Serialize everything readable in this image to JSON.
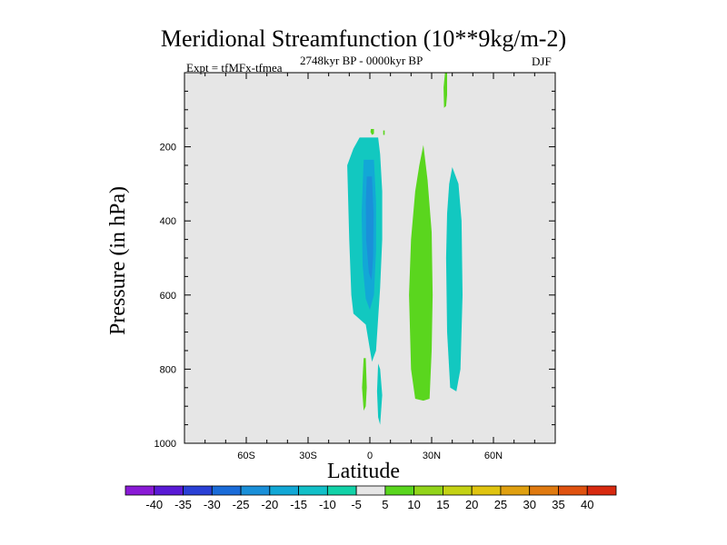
{
  "chart_data": {
    "type": "contour",
    "title": "Meridional Streamfunction (10**9kg/m-2)",
    "subtitle_left": "Expt = tfMFx-tfmea",
    "subtitle_center": "2748kyr BP - 0000kyr BP",
    "subtitle_right": "DJF",
    "xlabel": "Latitude",
    "ylabel": "Pressure (in hPa)",
    "x_range": [
      -90,
      90
    ],
    "y_range": [
      0,
      1000
    ],
    "y_inverted": true,
    "x_ticks": [
      {
        "value": -60,
        "label": "60S"
      },
      {
        "value": -30,
        "label": "30S"
      },
      {
        "value": 0,
        "label": "0"
      },
      {
        "value": 30,
        "label": "30N"
      },
      {
        "value": 60,
        "label": "60N"
      }
    ],
    "y_ticks": [
      {
        "value": 200,
        "label": "200"
      },
      {
        "value": 400,
        "label": "400"
      },
      {
        "value": 600,
        "label": "600"
      },
      {
        "value": 800,
        "label": "800"
      },
      {
        "value": 1000,
        "label": "1000"
      }
    ],
    "background_color": "#e6e6e6",
    "colorbar": {
      "levels": [
        -40,
        -35,
        -30,
        -25,
        -20,
        -15,
        -10,
        -5,
        5,
        10,
        15,
        20,
        25,
        30,
        35,
        40
      ],
      "colors": [
        "#8a1ad6",
        "#5a1ad6",
        "#2a40d6",
        "#1a6cd9",
        "#1a90d9",
        "#12a8d6",
        "#12c0c8",
        "#12d2a8",
        "#e6e6e6",
        "#5ad61e",
        "#92d41a",
        "#c4d214",
        "#e0c410",
        "#e0a010",
        "#e07a10",
        "#e05210",
        "#d82a10"
      ]
    },
    "regions": [
      {
        "name": "tropical-cell-outer",
        "level": "-10 to -5",
        "color": "#12c8c0",
        "polygon": [
          [
            -5,
            175
          ],
          [
            4,
            175
          ],
          [
            5,
            220
          ],
          [
            6,
            320
          ],
          [
            6,
            450
          ],
          [
            5,
            580
          ],
          [
            3,
            750
          ],
          [
            1,
            780
          ],
          [
            -2,
            680
          ],
          [
            -8,
            650
          ],
          [
            -9,
            600
          ],
          [
            -10,
            450
          ],
          [
            -11,
            250
          ],
          [
            -8,
            205
          ]
        ]
      },
      {
        "name": "tropical-cell-mid",
        "level": "-15 to -10",
        "color": "#12a8d6",
        "polygon": [
          [
            -3,
            235
          ],
          [
            2,
            235
          ],
          [
            3,
            350
          ],
          [
            3,
            480
          ],
          [
            2,
            600
          ],
          [
            0,
            640
          ],
          [
            -2,
            610
          ],
          [
            -3.5,
            520
          ],
          [
            -4,
            380
          ]
        ]
      },
      {
        "name": "tropical-cell-core",
        "level": "-20 to -15",
        "color": "#1a90d9",
        "polygon": [
          [
            -1.5,
            280
          ],
          [
            1,
            280
          ],
          [
            1.8,
            380
          ],
          [
            1.6,
            500
          ],
          [
            0.8,
            560
          ],
          [
            -0.5,
            540
          ],
          [
            -1.8,
            450
          ],
          [
            -2,
            350
          ]
        ]
      },
      {
        "name": "nh-subtropical-green",
        "level": "5 to 10",
        "color": "#5ad61e",
        "polygon": [
          [
            26,
            195
          ],
          [
            28,
            290
          ],
          [
            30,
            430
          ],
          [
            30.5,
            600
          ],
          [
            30,
            750
          ],
          [
            29,
            880
          ],
          [
            26,
            885
          ],
          [
            22,
            880
          ],
          [
            20,
            800
          ],
          [
            19,
            600
          ],
          [
            20,
            450
          ],
          [
            22,
            320
          ],
          [
            24,
            250
          ]
        ]
      },
      {
        "name": "nh-midlat-cyan",
        "level": "-10 to -5",
        "color": "#12c8c0",
        "polygon": [
          [
            40,
            255
          ],
          [
            43,
            300
          ],
          [
            44.5,
            400
          ],
          [
            45,
            600
          ],
          [
            44,
            800
          ],
          [
            42,
            860
          ],
          [
            39,
            850
          ],
          [
            37.5,
            700
          ],
          [
            37,
            500
          ],
          [
            37.5,
            380
          ],
          [
            38.5,
            300
          ]
        ]
      },
      {
        "name": "upper-nh-sliver",
        "level": "5 to 10",
        "color": "#5ad61e",
        "polygon": [
          [
            36.5,
            0
          ],
          [
            37.5,
            0
          ],
          [
            37.5,
            60
          ],
          [
            37,
            90
          ],
          [
            36,
            95
          ],
          [
            35.8,
            40
          ]
        ]
      },
      {
        "name": "eq-upper-dot",
        "level": "5 to 10",
        "color": "#5ad61e",
        "polygon": [
          [
            0.5,
            152
          ],
          [
            2,
            152
          ],
          [
            2,
            165
          ],
          [
            1,
            168
          ],
          [
            0.3,
            160
          ]
        ]
      },
      {
        "name": "eq-upper-dot-2",
        "level": "5 to 10",
        "color": "#5ad61e",
        "polygon": [
          [
            6.5,
            156
          ],
          [
            7.2,
            156
          ],
          [
            7.2,
            168
          ],
          [
            6.5,
            168
          ]
        ]
      },
      {
        "name": "lower-sh-green",
        "level": "5 to 10",
        "color": "#5ad61e",
        "polygon": [
          [
            -3,
            770
          ],
          [
            -2,
            770
          ],
          [
            -1.5,
            850
          ],
          [
            -2,
            900
          ],
          [
            -3,
            912
          ],
          [
            -3.8,
            850
          ]
        ]
      },
      {
        "name": "lower-eq-cyan",
        "level": "-10 to -5",
        "color": "#12c8c0",
        "polygon": [
          [
            4,
            785
          ],
          [
            5,
            800
          ],
          [
            6,
            870
          ],
          [
            5,
            950
          ],
          [
            4,
            930
          ],
          [
            3.5,
            860
          ]
        ]
      }
    ]
  }
}
